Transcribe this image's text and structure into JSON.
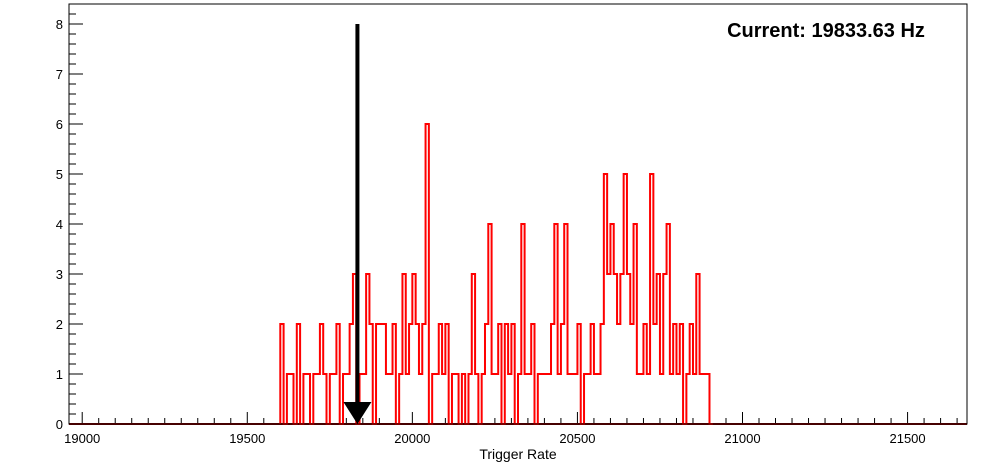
{
  "chart_data": {
    "type": "histogram",
    "title": "",
    "xlabel": "Trigger Rate",
    "ylabel": "",
    "xlim": [
      18960,
      21680
    ],
    "ylim": [
      0,
      8.4
    ],
    "x_ticks": [
      19000,
      19500,
      20000,
      20500,
      21000,
      21500
    ],
    "y_ticks": [
      0,
      1,
      2,
      3,
      4,
      5,
      6,
      7,
      8
    ],
    "grid": false,
    "legend": "none",
    "colors": {
      "histogram": "#ff0000",
      "baseline": "#8b0000",
      "frame": "#000000",
      "arrow": "#000000"
    },
    "annotation": {
      "text": "Current: 19833.63 Hz",
      "arrow_x": 19833.63,
      "arrow_from_y": 8,
      "arrow_to_y": 0
    },
    "series": [
      {
        "bin_width": 10,
        "bins": [
          [
            19600,
            2
          ],
          [
            19610,
            0
          ],
          [
            19620,
            1
          ],
          [
            19630,
            1
          ],
          [
            19640,
            0
          ],
          [
            19650,
            2
          ],
          [
            19660,
            0
          ],
          [
            19670,
            1
          ],
          [
            19680,
            1
          ],
          [
            19690,
            0
          ],
          [
            19700,
            1
          ],
          [
            19710,
            1
          ],
          [
            19720,
            2
          ],
          [
            19730,
            1
          ],
          [
            19740,
            0
          ],
          [
            19750,
            1
          ],
          [
            19760,
            1
          ],
          [
            19770,
            2
          ],
          [
            19780,
            0
          ],
          [
            19790,
            1
          ],
          [
            19800,
            1
          ],
          [
            19810,
            2
          ],
          [
            19820,
            3
          ],
          [
            19830,
            0
          ],
          [
            19840,
            1
          ],
          [
            19850,
            1
          ],
          [
            19860,
            3
          ],
          [
            19870,
            2
          ],
          [
            19880,
            0
          ],
          [
            19890,
            2
          ],
          [
            19900,
            2
          ],
          [
            19910,
            2
          ],
          [
            19920,
            1
          ],
          [
            19930,
            1
          ],
          [
            19940,
            2
          ],
          [
            19950,
            0
          ],
          [
            19960,
            1
          ],
          [
            19970,
            3
          ],
          [
            19980,
            1
          ],
          [
            19990,
            2
          ],
          [
            20000,
            3
          ],
          [
            20010,
            2
          ],
          [
            20020,
            1
          ],
          [
            20030,
            2
          ],
          [
            20040,
            6
          ],
          [
            20050,
            0
          ],
          [
            20060,
            1
          ],
          [
            20070,
            1
          ],
          [
            20080,
            2
          ],
          [
            20090,
            1
          ],
          [
            20100,
            2
          ],
          [
            20110,
            0
          ],
          [
            20120,
            1
          ],
          [
            20130,
            1
          ],
          [
            20140,
            0
          ],
          [
            20150,
            1
          ],
          [
            20160,
            0
          ],
          [
            20170,
            1
          ],
          [
            20180,
            3
          ],
          [
            20190,
            1
          ],
          [
            20200,
            0
          ],
          [
            20210,
            1
          ],
          [
            20220,
            2
          ],
          [
            20230,
            4
          ],
          [
            20240,
            1
          ],
          [
            20250,
            1
          ],
          [
            20260,
            2
          ],
          [
            20270,
            0
          ],
          [
            20280,
            2
          ],
          [
            20290,
            1
          ],
          [
            20300,
            2
          ],
          [
            20310,
            0
          ],
          [
            20320,
            1
          ],
          [
            20330,
            4
          ],
          [
            20340,
            1
          ],
          [
            20350,
            1
          ],
          [
            20360,
            2
          ],
          [
            20370,
            0
          ],
          [
            20380,
            1
          ],
          [
            20390,
            1
          ],
          [
            20400,
            1
          ],
          [
            20410,
            1
          ],
          [
            20420,
            2
          ],
          [
            20430,
            4
          ],
          [
            20440,
            1
          ],
          [
            20450,
            2
          ],
          [
            20460,
            4
          ],
          [
            20470,
            1
          ],
          [
            20480,
            1
          ],
          [
            20490,
            1
          ],
          [
            20500,
            2
          ],
          [
            20510,
            0
          ],
          [
            20520,
            1
          ],
          [
            20530,
            1
          ],
          [
            20540,
            2
          ],
          [
            20550,
            1
          ],
          [
            20560,
            1
          ],
          [
            20570,
            2
          ],
          [
            20580,
            5
          ],
          [
            20590,
            3
          ],
          [
            20600,
            4
          ],
          [
            20610,
            3
          ],
          [
            20620,
            2
          ],
          [
            20630,
            3
          ],
          [
            20640,
            5
          ],
          [
            20650,
            3
          ],
          [
            20660,
            2
          ],
          [
            20670,
            4
          ],
          [
            20680,
            1
          ],
          [
            20690,
            1
          ],
          [
            20700,
            2
          ],
          [
            20710,
            1
          ],
          [
            20720,
            5
          ],
          [
            20730,
            2
          ],
          [
            20740,
            3
          ],
          [
            20750,
            1
          ],
          [
            20760,
            3
          ],
          [
            20770,
            4
          ],
          [
            20780,
            1
          ],
          [
            20790,
            2
          ],
          [
            20800,
            1
          ],
          [
            20810,
            2
          ],
          [
            20820,
            0
          ],
          [
            20830,
            1
          ],
          [
            20840,
            2
          ],
          [
            20850,
            1
          ],
          [
            20860,
            3
          ],
          [
            20870,
            1
          ],
          [
            20880,
            1
          ],
          [
            20890,
            1
          ],
          [
            20900,
            0
          ]
        ]
      }
    ]
  }
}
